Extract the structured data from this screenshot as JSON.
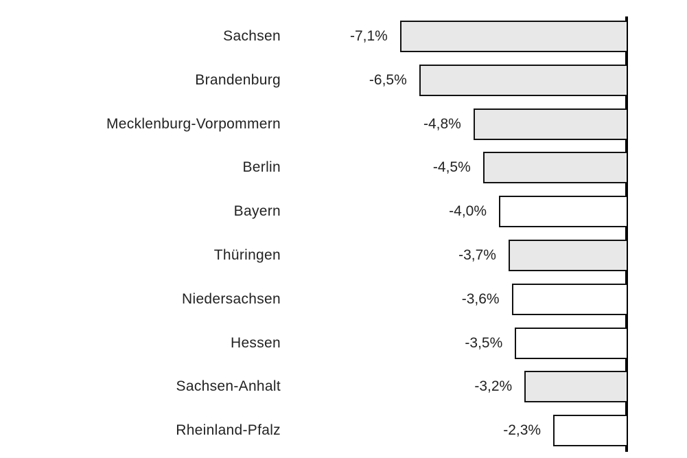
{
  "chart_data": {
    "type": "bar",
    "orientation": "horizontal",
    "title": "",
    "xlabel": "",
    "ylabel": "",
    "grid": false,
    "legend": null,
    "xlim": [
      -7.1,
      0
    ],
    "value_format": "percent, comma decimal",
    "categories": [
      "Sachsen",
      "Brandenburg",
      "Mecklenburg-Vorpommern",
      "Berlin",
      "Bayern",
      "Thüringen",
      "Niedersachsen",
      "Hessen",
      "Sachsen-Anhalt",
      "Rheinland-Pfalz"
    ],
    "values": [
      -7.1,
      -6.5,
      -4.8,
      -4.5,
      -4.0,
      -3.7,
      -3.6,
      -3.5,
      -3.2,
      -2.3
    ],
    "value_labels": [
      "-7,1%",
      "-6,5%",
      "-4,8%",
      "-4,5%",
      "-4,0%",
      "-3,7%",
      "-3,6%",
      "-3,5%",
      "-3,2%",
      "-2,3%"
    ],
    "bar_fills": [
      "#e8e8e8",
      "#e8e8e8",
      "#e8e8e8",
      "#e8e8e8",
      "#ffffff",
      "#e8e8e8",
      "#ffffff",
      "#ffffff",
      "#e8e8e8",
      "#ffffff"
    ]
  },
  "colors": {
    "shaded_fill": "#e8e8e8",
    "plain_fill": "#ffffff",
    "border": "#111111",
    "axis": "#000000"
  }
}
